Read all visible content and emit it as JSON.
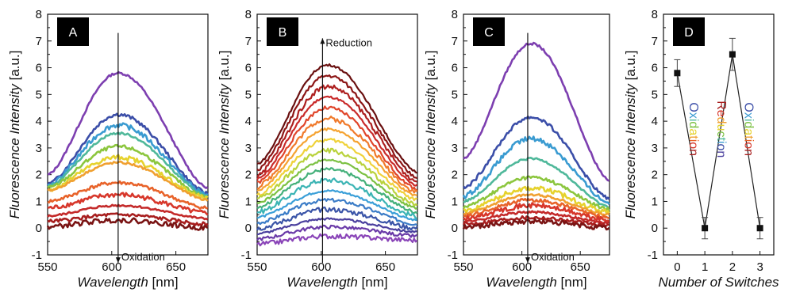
{
  "chart_data": [
    {
      "panel": "A",
      "type": "line",
      "xlabel_italic": "Wavelength",
      "xlabel_unit": "[nm]",
      "ylabel_italic": "Fluorescence Intensity",
      "ylabel_unit": "[a.u.]",
      "xlim": [
        550,
        675
      ],
      "ylim": [
        -1,
        8
      ],
      "xticks": [
        550,
        600,
        650
      ],
      "yticks": [
        -1,
        0,
        1,
        2,
        3,
        4,
        5,
        6,
        7,
        8
      ],
      "annotation": "Oxidation",
      "arrow": {
        "x": 605,
        "from": 7.3,
        "to": -1.3
      },
      "series": [
        {
          "color": "#7d3fb0",
          "values": [
            [
              550,
              2.0
            ],
            [
              605,
              5.8
            ],
            [
              675,
              1.5
            ]
          ]
        },
        {
          "color": "#3b4ea8",
          "values": [
            [
              550,
              1.65
            ],
            [
              605,
              4.25
            ],
            [
              675,
              1.3
            ]
          ]
        },
        {
          "color": "#3a9bd1",
          "values": [
            [
              550,
              1.6
            ],
            [
              605,
              3.85
            ],
            [
              675,
              1.25
            ]
          ]
        },
        {
          "color": "#4fb89a",
          "values": [
            [
              550,
              1.55
            ],
            [
              605,
              3.55
            ],
            [
              675,
              1.2
            ]
          ]
        },
        {
          "color": "#8cc63e",
          "values": [
            [
              550,
              1.5
            ],
            [
              605,
              3.05
            ],
            [
              675,
              1.15
            ]
          ]
        },
        {
          "color": "#e6d22e",
          "values": [
            [
              550,
              1.45
            ],
            [
              605,
              2.65
            ],
            [
              675,
              1.1
            ]
          ]
        },
        {
          "color": "#f0a030",
          "values": [
            [
              550,
              1.4
            ],
            [
              605,
              2.45
            ],
            [
              675,
              1.05
            ]
          ]
        },
        {
          "color": "#e8632a",
          "values": [
            [
              550,
              1.0
            ],
            [
              605,
              1.7
            ],
            [
              675,
              0.75
            ]
          ]
        },
        {
          "color": "#d7372b",
          "values": [
            [
              550,
              0.75
            ],
            [
              605,
              1.25
            ],
            [
              675,
              0.55
            ]
          ]
        },
        {
          "color": "#c42a2a",
          "values": [
            [
              550,
              0.45
            ],
            [
              605,
              0.85
            ],
            [
              675,
              0.35
            ]
          ]
        },
        {
          "color": "#a81e1e",
          "values": [
            [
              550,
              0.25
            ],
            [
              605,
              0.5
            ],
            [
              675,
              0.15
            ]
          ]
        },
        {
          "color": "#7a1414",
          "values": [
            [
              550,
              0.05
            ],
            [
              605,
              0.3
            ],
            [
              675,
              0.0
            ]
          ]
        }
      ]
    },
    {
      "panel": "B",
      "type": "line",
      "xlabel_italic": "Wavelength",
      "xlabel_unit": "[nm]",
      "ylabel_italic": "Fluorescence Intensity",
      "ylabel_unit": "[a.u.]",
      "xlim": [
        550,
        675
      ],
      "ylim": [
        -1,
        8
      ],
      "xticks": [
        550,
        600,
        650
      ],
      "yticks": [
        -1,
        0,
        1,
        2,
        3,
        4,
        5,
        6,
        7,
        8
      ],
      "annotation": "Reduction",
      "arrow": {
        "x": 601,
        "from": -1.3,
        "to": 7.1
      },
      "series": [
        {
          "color": "#6a1010",
          "values": [
            [
              550,
              2.4
            ],
            [
              605,
              6.1
            ],
            [
              675,
              2.1
            ]
          ]
        },
        {
          "color": "#8c1515",
          "values": [
            [
              550,
              2.2
            ],
            [
              605,
              5.7
            ],
            [
              675,
              1.9
            ]
          ]
        },
        {
          "color": "#ad1f1f",
          "values": [
            [
              550,
              2.0
            ],
            [
              605,
              5.3
            ],
            [
              675,
              1.75
            ]
          ]
        },
        {
          "color": "#c92a2a",
          "values": [
            [
              550,
              1.85
            ],
            [
              605,
              4.9
            ],
            [
              675,
              1.6
            ]
          ]
        },
        {
          "color": "#e0452a",
          "values": [
            [
              550,
              1.7
            ],
            [
              605,
              4.5
            ],
            [
              675,
              1.45
            ]
          ]
        },
        {
          "color": "#f07a2c",
          "values": [
            [
              550,
              1.55
            ],
            [
              605,
              4.1
            ],
            [
              675,
              1.35
            ]
          ]
        },
        {
          "color": "#f5a331",
          "values": [
            [
              550,
              1.4
            ],
            [
              605,
              3.7
            ],
            [
              675,
              1.2
            ]
          ]
        },
        {
          "color": "#efd23a",
          "values": [
            [
              550,
              1.25
            ],
            [
              605,
              3.3
            ],
            [
              675,
              1.05
            ]
          ]
        },
        {
          "color": "#b9d23c",
          "values": [
            [
              550,
              1.1
            ],
            [
              605,
              2.9
            ],
            [
              675,
              0.9
            ]
          ]
        },
        {
          "color": "#7cc143",
          "values": [
            [
              550,
              0.95
            ],
            [
              605,
              2.55
            ],
            [
              675,
              0.75
            ]
          ]
        },
        {
          "color": "#44b07a",
          "values": [
            [
              550,
              0.8
            ],
            [
              605,
              2.2
            ],
            [
              675,
              0.6
            ]
          ]
        },
        {
          "color": "#3bb4b4",
          "values": [
            [
              550,
              0.6
            ],
            [
              605,
              1.8
            ],
            [
              675,
              0.45
            ]
          ]
        },
        {
          "color": "#3a9fd8",
          "values": [
            [
              550,
              0.4
            ],
            [
              605,
              1.4
            ],
            [
              675,
              0.3
            ]
          ]
        },
        {
          "color": "#3b7cc7",
          "values": [
            [
              550,
              0.2
            ],
            [
              605,
              1.05
            ],
            [
              675,
              0.15
            ]
          ]
        },
        {
          "color": "#3b55a8",
          "values": [
            [
              550,
              0.0
            ],
            [
              605,
              0.7
            ],
            [
              675,
              0.0
            ]
          ]
        },
        {
          "color": "#4a3f9e",
          "values": [
            [
              550,
              -0.2
            ],
            [
              605,
              0.35
            ],
            [
              675,
              -0.15
            ]
          ]
        },
        {
          "color": "#6a3aa8",
          "values": [
            [
              550,
              -0.4
            ],
            [
              605,
              0.05
            ],
            [
              675,
              -0.3
            ]
          ]
        },
        {
          "color": "#8a45b8",
          "values": [
            [
              550,
              -0.6
            ],
            [
              605,
              -0.3
            ],
            [
              675,
              -0.45
            ]
          ]
        }
      ]
    },
    {
      "panel": "C",
      "type": "line",
      "xlabel_italic": "Wavelength",
      "xlabel_unit": "[nm]",
      "ylabel_italic": "Fluorescence Intensity",
      "ylabel_unit": "[a.u.]",
      "xlim": [
        550,
        675
      ],
      "ylim": [
        -1,
        8
      ],
      "xticks": [
        550,
        600,
        650
      ],
      "yticks": [
        -1,
        0,
        1,
        2,
        3,
        4,
        5,
        6,
        7,
        8
      ],
      "annotation": "Oxidation",
      "arrow": {
        "x": 605,
        "from": 7.3,
        "to": -1.3
      },
      "series": [
        {
          "color": "#7d3fb0",
          "values": [
            [
              550,
              2.6
            ],
            [
              608,
              6.9
            ],
            [
              675,
              1.8
            ]
          ]
        },
        {
          "color": "#3b4ea8",
          "values": [
            [
              550,
              1.5
            ],
            [
              608,
              4.15
            ],
            [
              675,
              1.1
            ]
          ]
        },
        {
          "color": "#3a9bd1",
          "values": [
            [
              550,
              1.2
            ],
            [
              608,
              3.35
            ],
            [
              675,
              0.95
            ]
          ]
        },
        {
          "color": "#4fb89a",
          "values": [
            [
              550,
              1.0
            ],
            [
              608,
              2.6
            ],
            [
              675,
              0.8
            ]
          ]
        },
        {
          "color": "#8cc63e",
          "values": [
            [
              550,
              0.8
            ],
            [
              608,
              1.9
            ],
            [
              675,
              0.7
            ]
          ]
        },
        {
          "color": "#e6d22e",
          "values": [
            [
              550,
              0.65
            ],
            [
              608,
              1.5
            ],
            [
              675,
              0.6
            ]
          ]
        },
        {
          "color": "#f0a030",
          "values": [
            [
              550,
              0.55
            ],
            [
              608,
              1.25
            ],
            [
              675,
              0.5
            ]
          ]
        },
        {
          "color": "#e8632a",
          "values": [
            [
              550,
              0.45
            ],
            [
              608,
              1.05
            ],
            [
              675,
              0.4
            ]
          ]
        },
        {
          "color": "#d7372b",
          "values": [
            [
              550,
              0.35
            ],
            [
              608,
              0.85
            ],
            [
              675,
              0.3
            ]
          ]
        },
        {
          "color": "#c42a2a",
          "values": [
            [
              550,
              0.25
            ],
            [
              608,
              0.6
            ],
            [
              675,
              0.2
            ]
          ]
        },
        {
          "color": "#a81e1e",
          "values": [
            [
              550,
              0.15
            ],
            [
              608,
              0.4
            ],
            [
              675,
              0.1
            ]
          ]
        },
        {
          "color": "#7a1414",
          "values": [
            [
              550,
              0.05
            ],
            [
              608,
              0.25
            ],
            [
              675,
              0.0
            ]
          ]
        }
      ]
    },
    {
      "panel": "D",
      "type": "scatter",
      "xlabel_italic": "Number of Switches",
      "ylabel_italic": "Fluorescence Intensity",
      "ylabel_unit": "[a.u.]",
      "xlim": [
        -0.5,
        3.5
      ],
      "ylim": [
        -1,
        8
      ],
      "xticks": [
        0,
        1,
        2,
        3
      ],
      "yticks": [
        -1,
        0,
        1,
        2,
        3,
        4,
        5,
        6,
        7,
        8
      ],
      "x": [
        0,
        1,
        2,
        3
      ],
      "y": [
        5.8,
        0.0,
        6.5,
        0.0
      ],
      "error": [
        0.5,
        0.4,
        0.6,
        0.4
      ],
      "rotated_words": [
        {
          "text": "Oxidation",
          "letters": [
            "O",
            "x",
            "i",
            "d",
            "a",
            "t",
            "i",
            "o",
            "n"
          ],
          "colors": [
            "#3b4ea8",
            "#3a9bd1",
            "#4fb89a",
            "#7cc143",
            "#e6d22e",
            "#f0a030",
            "#e8632a",
            "#d7372b",
            "#a81e1e"
          ],
          "x": 0.45,
          "y": 3.7
        },
        {
          "text": "Reduction",
          "letters": [
            "R",
            "e",
            "d",
            "u",
            "c",
            "t",
            "i",
            "o",
            "n"
          ],
          "colors": [
            "#a81e1e",
            "#d7372b",
            "#f0a030",
            "#e6d22e",
            "#7cc143",
            "#4fb89a",
            "#3a9bd1",
            "#3b4ea8",
            "#4a3f9e"
          ],
          "x": 1.45,
          "y": 3.7
        },
        {
          "text": "Oxidation",
          "letters": [
            "O",
            "x",
            "i",
            "d",
            "a",
            "t",
            "i",
            "o",
            "n"
          ],
          "colors": [
            "#3b4ea8",
            "#3a9bd1",
            "#4fb89a",
            "#7cc143",
            "#e6d22e",
            "#f0a030",
            "#e8632a",
            "#d7372b",
            "#a81e1e"
          ],
          "x": 2.45,
          "y": 3.7
        }
      ]
    }
  ]
}
